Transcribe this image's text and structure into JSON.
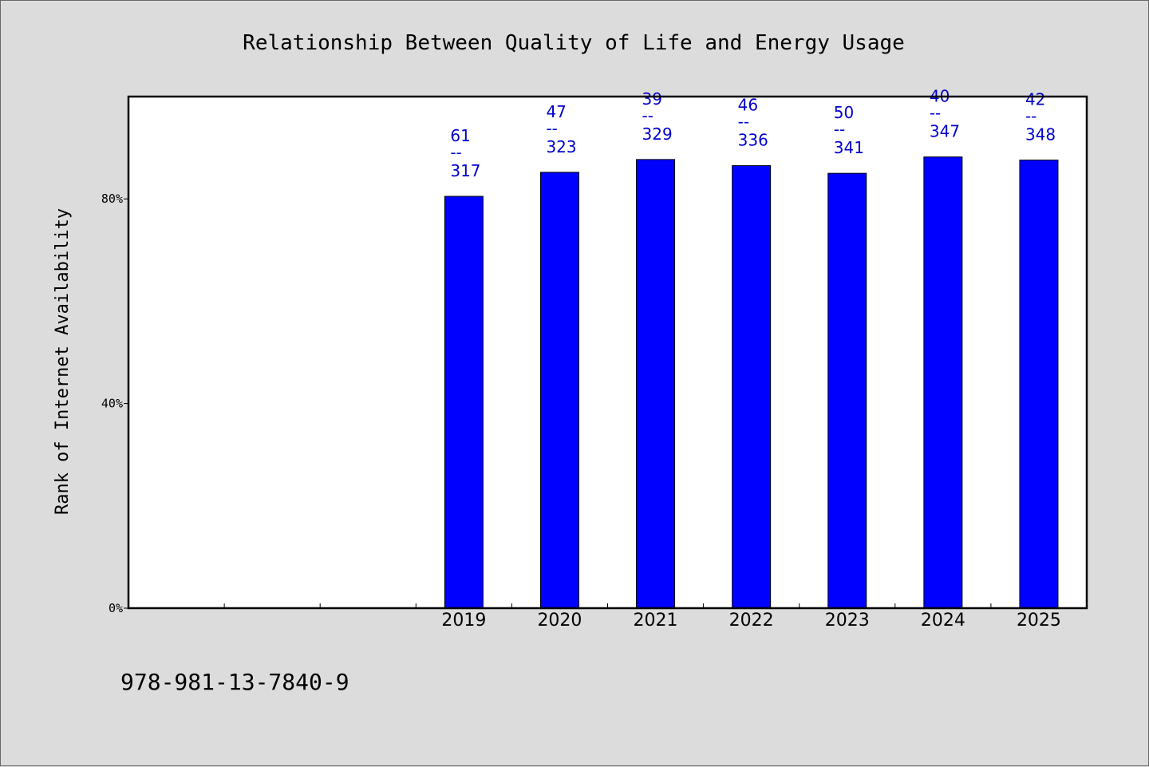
{
  "chart_data": {
    "type": "bar",
    "title": "Relationship Between Quality of Life and Energy Usage",
    "ylabel": "Rank of Internet Availability",
    "xlabel": "",
    "categories": [
      "",
      "",
      "",
      "2019",
      "2020",
      "2021",
      "2022",
      "2023",
      "2024",
      "2025"
    ],
    "values": [
      null,
      null,
      null,
      80.5,
      85.2,
      87.7,
      86.5,
      85.0,
      88.2,
      87.6
    ],
    "data_labels": [
      null,
      null,
      null,
      {
        "top": "61",
        "mid": "--",
        "bottom": "317"
      },
      {
        "top": "47",
        "mid": "--",
        "bottom": "323"
      },
      {
        "top": "39",
        "mid": "--",
        "bottom": "329"
      },
      {
        "top": "46",
        "mid": "--",
        "bottom": "336"
      },
      {
        "top": "50",
        "mid": "--",
        "bottom": "341"
      },
      {
        "top": "40",
        "mid": "--",
        "bottom": "347"
      },
      {
        "top": "42",
        "mid": "--",
        "bottom": "348"
      }
    ],
    "ylim": [
      0,
      100
    ],
    "yticks": [
      0,
      40,
      80
    ],
    "ytick_labels": [
      "0%",
      "40%",
      "80%"
    ],
    "grid": false,
    "bar_color": "#0000ff",
    "label_color": "#0000cc"
  },
  "footer": {
    "text": "978-981-13-7840-9"
  }
}
